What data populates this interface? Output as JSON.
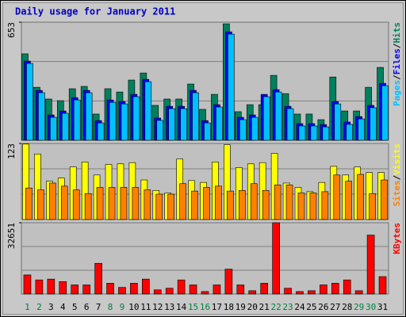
{
  "chart_data": [
    {
      "type": "bar",
      "title": "Daily usage for January 2011",
      "legend_separator": "/",
      "series": [
        {
          "name": "Hits",
          "color": "#00805c",
          "values": [
            478,
            293,
            228,
            219,
            285,
            298,
            145,
            285,
            267,
            333,
            372,
            193,
            228,
            228,
            311,
            171,
            254,
            644,
            158,
            197,
            197,
            359,
            258,
            145,
            145,
            114,
            350,
            162,
            162,
            293,
            403
          ]
        },
        {
          "name": "Files",
          "color": "#0000ff",
          "values": [
            438,
            276,
            140,
            162,
            236,
            276,
            109,
            223,
            214,
            254,
            337,
            123,
            188,
            188,
            276,
            109,
            197,
            600,
            127,
            140,
            254,
            280,
            188,
            92,
            92,
            87,
            214,
            101,
            131,
            193,
            315
          ]
        },
        {
          "name": "Pages",
          "color": "#00c0ff",
          "values": [
            425,
            263,
            127,
            149,
            223,
            263,
            96,
            210,
            201,
            241,
            324,
            110,
            175,
            175,
            263,
            96,
            184,
            587,
            114,
            127,
            241,
            267,
            175,
            79,
            79,
            74,
            201,
            88,
            118,
            180,
            302
          ]
        }
      ],
      "ylim": [
        0,
        653
      ],
      "yticks": [
        653
      ],
      "grid": true
    },
    {
      "type": "bar",
      "legend_separator": "/",
      "series": [
        {
          "name": "Visits",
          "color": "#ffff00",
          "values": [
            122,
            106,
            62,
            67,
            85,
            93,
            72,
            89,
            90,
            92,
            64,
            47,
            43,
            98,
            63,
            60,
            93,
            121,
            84,
            90,
            92,
            107,
            59,
            52,
            45,
            60,
            86,
            72,
            85,
            76,
            76
          ]
        },
        {
          "name": "Sites",
          "color": "#ff8000",
          "values": [
            51,
            48,
            59,
            54,
            48,
            42,
            52,
            52,
            52,
            52,
            48,
            41,
            41,
            58,
            46,
            52,
            54,
            46,
            47,
            58,
            47,
            56,
            56,
            43,
            43,
            45,
            72,
            62,
            73,
            42,
            64
          ]
        }
      ],
      "ylim": [
        0,
        123
      ],
      "yticks": [
        123
      ],
      "grid": true
    },
    {
      "type": "bar",
      "categories": [
        "1",
        "2",
        "3",
        "4",
        "5",
        "6",
        "7",
        "8",
        "9",
        "10",
        "11",
        "12",
        "13",
        "14",
        "15",
        "16",
        "17",
        "18",
        "19",
        "20",
        "21",
        "22",
        "23",
        "24",
        "25",
        "26",
        "27",
        "28",
        "29",
        "30",
        "31"
      ],
      "category_colors": [
        "#008040",
        "#008040",
        "#000000",
        "#000000",
        "#000000",
        "#000000",
        "#000000",
        "#008040",
        "#008040",
        "#000000",
        "#000000",
        "#000000",
        "#000000",
        "#000000",
        "#008040",
        "#008040",
        "#000000",
        "#000000",
        "#000000",
        "#000000",
        "#000000",
        "#008040",
        "#008040",
        "#000000",
        "#000000",
        "#000000",
        "#000000",
        "#000000",
        "#008040",
        "#008040",
        "#000000"
      ],
      "series": [
        {
          "name": "KBytes",
          "color": "#ff0000",
          "values": [
            8740,
            6460,
            6840,
            5700,
            4180,
            4180,
            14060,
            4940,
            3040,
            4940,
            6840,
            1900,
            2660,
            6460,
            4180,
            1140,
            4180,
            11400,
            4180,
            1520,
            4940,
            32651,
            2660,
            1140,
            1520,
            4180,
            4940,
            6460,
            1520,
            26980,
            7980
          ]
        }
      ],
      "ylim": [
        0,
        32651
      ],
      "yticks": [
        32651
      ],
      "grid": true
    }
  ]
}
